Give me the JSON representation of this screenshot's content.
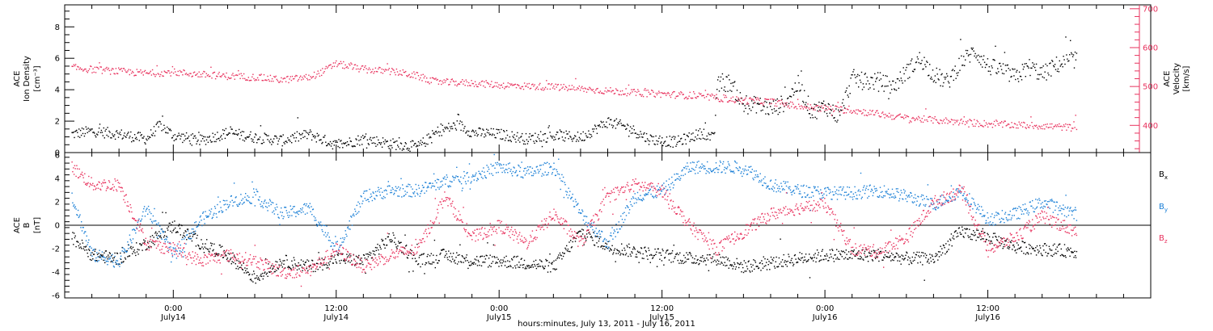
{
  "chart_data": {
    "type": "scatter",
    "xlabel": "hours:minutes, July 13, 2011 - July 16, 2011",
    "x_tick_labels": [
      {
        "x": 24,
        "time": "0:00",
        "day": "July14"
      },
      {
        "x": 36,
        "time": "12:00",
        "day": "July14"
      },
      {
        "x": 48,
        "time": "0:00",
        "day": "July15"
      },
      {
        "x": 60,
        "time": "12:00",
        "day": "July15"
      },
      {
        "x": 72,
        "time": "0:00",
        "day": "July16"
      },
      {
        "x": 84,
        "time": "12:00",
        "day": "July16"
      }
    ],
    "x_unit": "hours since July 13, 2011 0:00",
    "xlim": [
      16,
      96
    ],
    "panels": [
      {
        "id": "plasma",
        "ylabel_lines": [
          "ACE",
          "Ion Density",
          "[cm⁻³]"
        ],
        "ylim": [
          0,
          9.4
        ],
        "yticks": [
          0,
          2,
          4,
          6,
          8
        ],
        "y2label_lines": [
          "ACE",
          "Velocity",
          "[km/s]"
        ],
        "y2lim": [
          330,
          710
        ],
        "y2ticks": [
          400,
          500,
          600,
          700
        ],
        "colors": {
          "density": "#000000",
          "velocity": "#e8325e"
        },
        "series": [
          {
            "name": "Ion Density",
            "axis": "left",
            "color": "#000000",
            "x": [
              16.5,
              18,
              20,
              22,
              23,
              24,
              26,
              28,
              30,
              32,
              34,
              36,
              38,
              40,
              42,
              43.5,
              45,
              46,
              48,
              50,
              52,
              54,
              56,
              57.5,
              59,
              60,
              61,
              62,
              63,
              63.8,
              64,
              65,
              66,
              67,
              68,
              69,
              70,
              71,
              72,
              73,
              74,
              75,
              76,
              77,
              78,
              79,
              80,
              81,
              82,
              83,
              84,
              85,
              86,
              87,
              88,
              89,
              90.5
            ],
            "y": [
              1.2,
              1.4,
              1.2,
              0.9,
              1.8,
              1.1,
              0.8,
              1.3,
              1.0,
              0.8,
              1.2,
              0.5,
              0.9,
              0.6,
              0.4,
              1.4,
              1.8,
              1.3,
              1.2,
              0.9,
              1.1,
              1.0,
              2.0,
              1.6,
              0.9,
              0.8,
              0.7,
              1.0,
              1.3,
              0.9,
              4.3,
              4.5,
              3.0,
              3.1,
              2.8,
              3.2,
              4.4,
              2.6,
              3.0,
              2.3,
              4.8,
              4.5,
              4.6,
              4.2,
              5.2,
              6.0,
              5.0,
              4.5,
              5.8,
              6.5,
              5.5,
              5.3,
              4.8,
              5.5,
              5.0,
              5.6,
              6.0
            ]
          },
          {
            "name": "Velocity",
            "axis": "right",
            "color": "#e8325e",
            "x": [
              16.5,
              18,
              20,
              22,
              24,
              26,
              28,
              30,
              32,
              34,
              35,
              36,
              37,
              38,
              40,
              41,
              42,
              43,
              44,
              46,
              48,
              50,
              52,
              54,
              56,
              58,
              60,
              62,
              64,
              66,
              68,
              70,
              72,
              74,
              76,
              78,
              80,
              82,
              84,
              86,
              88,
              90.5
            ],
            "y": [
              550,
              545,
              540,
              535,
              538,
              532,
              528,
              525,
              518,
              525,
              540,
              560,
              552,
              545,
              540,
              535,
              528,
              515,
              512,
              510,
              505,
              502,
              500,
              495,
              490,
              485,
              482,
              478,
              472,
              465,
              462,
              450,
              445,
              440,
              430,
              420,
              415,
              410,
              405,
              402,
              400,
              395
            ]
          }
        ]
      },
      {
        "id": "mag",
        "ylabel_lines": [
          "ACE",
          "B",
          "[nT]"
        ],
        "ylim": [
          -6.2,
          6.2
        ],
        "yticks": [
          -6,
          -4,
          -2,
          0,
          2,
          4,
          6
        ],
        "legend_placement": "right",
        "colors": {
          "Bx": "#000000",
          "By": "#1a7fd6",
          "Bz": "#e8325e"
        },
        "series": [
          {
            "name": "B",
            "sub": "x",
            "color": "#000000",
            "x": [
              16.5,
              18,
              20,
              22,
              24,
              26,
              28,
              30,
              32,
              34,
              36,
              38,
              40,
              42,
              44,
              46,
              48,
              50,
              52,
              54,
              56,
              58,
              60,
              62,
              64,
              66,
              68,
              70,
              72,
              74,
              76,
              78,
              80,
              82,
              84,
              86,
              88,
              90.5
            ],
            "y": [
              -1.0,
              -2.5,
              -2.8,
              -1.5,
              0.0,
              -1.5,
              -2.5,
              -4.5,
              -3.0,
              -3.5,
              -2.8,
              -3.0,
              -1.0,
              -3.0,
              -2.5,
              -3.0,
              -3.0,
              -3.2,
              -3.5,
              -0.5,
              -1.8,
              -2.2,
              -2.5,
              -2.8,
              -2.8,
              -3.5,
              -3.2,
              -2.8,
              -2.5,
              -2.5,
              -2.5,
              -2.8,
              -2.8,
              -0.5,
              -1.0,
              -1.8,
              -2.0,
              -2.2
            ]
          },
          {
            "name": "B",
            "sub": "y",
            "color": "#1a7fd6",
            "x": [
              16.5,
              18,
              20,
              22,
              24,
              26,
              28,
              30,
              32,
              34,
              36,
              38,
              40,
              42,
              44,
              46,
              48,
              50,
              52,
              54,
              56,
              58,
              60,
              62,
              64,
              66,
              68,
              70,
              72,
              74,
              76,
              78,
              80,
              82,
              84,
              86,
              88,
              90.5
            ],
            "y": [
              2.5,
              -2.5,
              -3.0,
              1.5,
              -2.5,
              0.5,
              2.0,
              2.5,
              1.0,
              1.5,
              -2.0,
              2.5,
              3.0,
              3.0,
              3.8,
              4.2,
              5.0,
              4.5,
              5.0,
              1.0,
              -1.5,
              2.5,
              3.0,
              5.0,
              5.0,
              5.0,
              3.5,
              3.0,
              2.8,
              2.8,
              3.0,
              2.5,
              1.8,
              3.0,
              0.5,
              1.0,
              2.0,
              1.0
            ]
          },
          {
            "name": "B",
            "sub": "z",
            "color": "#e8325e",
            "x": [
              16.5,
              18,
              20,
              22,
              24,
              26,
              28,
              30,
              32,
              34,
              36,
              38,
              40,
              42,
              44,
              46,
              48,
              50,
              52,
              54,
              56,
              58,
              60,
              62,
              64,
              66,
              68,
              70,
              72,
              74,
              76,
              78,
              80,
              82,
              84,
              86,
              88,
              90.5
            ],
            "y": [
              5.0,
              3.5,
              3.5,
              -1.5,
              -2.0,
              -3.0,
              -2.5,
              -3.0,
              -4.0,
              -3.8,
              -2.0,
              -3.5,
              -2.5,
              -2.0,
              2.5,
              -1.0,
              0.0,
              -1.5,
              1.0,
              -1.5,
              2.5,
              3.5,
              3.0,
              0.0,
              -2.0,
              -0.5,
              1.0,
              1.5,
              1.8,
              -2.0,
              -2.2,
              -1.0,
              2.0,
              3.0,
              -2.0,
              -1.0,
              0.8,
              -0.5
            ]
          }
        ]
      }
    ]
  }
}
